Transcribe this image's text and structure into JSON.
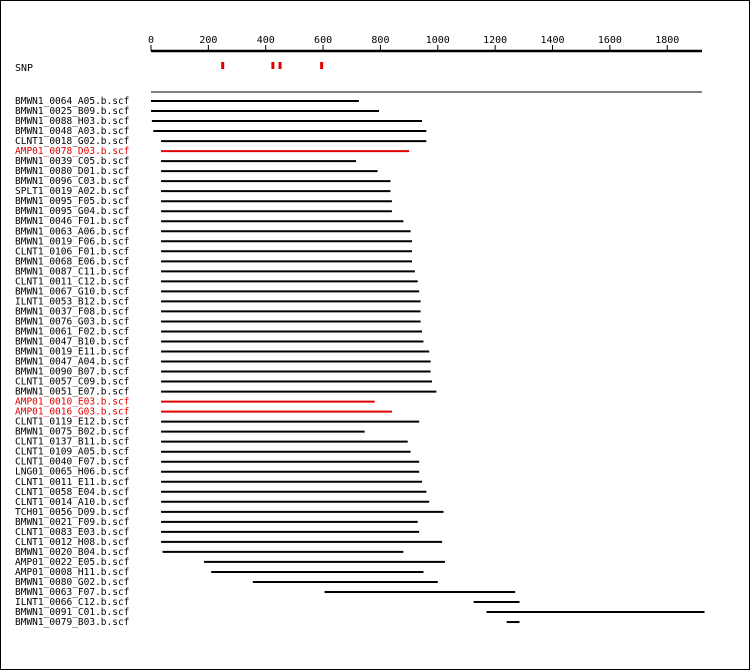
{
  "axis": {
    "min": 0,
    "max": 1900,
    "ticks": [
      0,
      200,
      400,
      600,
      800,
      1000,
      1200,
      1400,
      1600,
      1800
    ]
  },
  "snp": {
    "label": "SNP",
    "color": "#e00000",
    "positions": [
      250,
      425,
      450,
      595
    ]
  },
  "colors": {
    "normal": "#000000",
    "highlight": "#e00000"
  },
  "reads": [
    {
      "name": "BMWN1_0064_A05.b.scf",
      "start": 0,
      "end": 725,
      "highlight": false
    },
    {
      "name": "BMWN1_0025_B09.b.scf",
      "start": 0,
      "end": 795,
      "highlight": false
    },
    {
      "name": "BMWN1_0088_H03.b.scf",
      "start": 3,
      "end": 945,
      "highlight": false
    },
    {
      "name": "BMWN1_0048_A03.b.scf",
      "start": 8,
      "end": 960,
      "highlight": false
    },
    {
      "name": "CLNT1_0018_G02.b.scf",
      "start": 35,
      "end": 960,
      "highlight": false
    },
    {
      "name": "AMP01_0078_D03.b.scf",
      "start": 35,
      "end": 900,
      "highlight": true
    },
    {
      "name": "BMWN1_0039_C05.b.scf",
      "start": 35,
      "end": 715,
      "highlight": false
    },
    {
      "name": "BMWN1_0080_D01.b.scf",
      "start": 35,
      "end": 790,
      "highlight": false
    },
    {
      "name": "BMWN1_0096_C03.b.scf",
      "start": 35,
      "end": 835,
      "highlight": false
    },
    {
      "name": "SPLT1_0019_A02.b.scf",
      "start": 35,
      "end": 835,
      "highlight": false
    },
    {
      "name": "BMWN1_0095_F05.b.scf",
      "start": 35,
      "end": 840,
      "highlight": false
    },
    {
      "name": "BMWN1_0095_G04.b.scf",
      "start": 35,
      "end": 840,
      "highlight": false
    },
    {
      "name": "BMWN1_0046_F01.b.scf",
      "start": 35,
      "end": 880,
      "highlight": false
    },
    {
      "name": "BMWN1_0063_A06.b.scf",
      "start": 35,
      "end": 905,
      "highlight": false
    },
    {
      "name": "BMWN1_0019_F06.b.scf",
      "start": 35,
      "end": 910,
      "highlight": false
    },
    {
      "name": "CLNT1_0106_F01.b.scf",
      "start": 35,
      "end": 910,
      "highlight": false
    },
    {
      "name": "BMWN1_0068_E06.b.scf",
      "start": 35,
      "end": 910,
      "highlight": false
    },
    {
      "name": "BMWN1_0087_C11.b.scf",
      "start": 35,
      "end": 920,
      "highlight": false
    },
    {
      "name": "CLNT1_0011_C12.b.scf",
      "start": 35,
      "end": 930,
      "highlight": false
    },
    {
      "name": "BMWN1_0067_G10.b.scf",
      "start": 35,
      "end": 935,
      "highlight": false
    },
    {
      "name": "ILNT1_0053_B12.b.scf",
      "start": 35,
      "end": 940,
      "highlight": false
    },
    {
      "name": "BMWN1_0037_F08.b.scf",
      "start": 35,
      "end": 940,
      "highlight": false
    },
    {
      "name": "BMWN1_0076_G03.b.scf",
      "start": 35,
      "end": 940,
      "highlight": false
    },
    {
      "name": "BMWN1_0061_F02.b.scf",
      "start": 35,
      "end": 945,
      "highlight": false
    },
    {
      "name": "BMWN1_0047_B10.b.scf",
      "start": 35,
      "end": 950,
      "highlight": false
    },
    {
      "name": "BMWN1_0019_E11.b.scf",
      "start": 35,
      "end": 970,
      "highlight": false
    },
    {
      "name": "BMWN1_0047_A04.b.scf",
      "start": 35,
      "end": 975,
      "highlight": false
    },
    {
      "name": "BMWN1_0090_B07.b.scf",
      "start": 35,
      "end": 975,
      "highlight": false
    },
    {
      "name": "CLNT1_0057_C09.b.scf",
      "start": 35,
      "end": 980,
      "highlight": false
    },
    {
      "name": "BMWN1_0051_E07.b.scf",
      "start": 35,
      "end": 995,
      "highlight": false
    },
    {
      "name": "AMP01_0010_E03.b.scf",
      "start": 35,
      "end": 780,
      "highlight": true
    },
    {
      "name": "AMP01_0016_G03.b.scf",
      "start": 35,
      "end": 840,
      "highlight": true
    },
    {
      "name": "CLNT1_0119_E12.b.scf",
      "start": 35,
      "end": 935,
      "highlight": false
    },
    {
      "name": "BMWN1_0075_B02.b.scf",
      "start": 35,
      "end": 745,
      "highlight": false
    },
    {
      "name": "CLNT1_0137_B11.b.scf",
      "start": 35,
      "end": 895,
      "highlight": false
    },
    {
      "name": "CLNT1_0109_A05.b.scf",
      "start": 35,
      "end": 905,
      "highlight": false
    },
    {
      "name": "CLNT1_0040_F07.b.scf",
      "start": 35,
      "end": 935,
      "highlight": false
    },
    {
      "name": "LNG01_0065_H06.b.scf",
      "start": 35,
      "end": 935,
      "highlight": false
    },
    {
      "name": "CLNT1_0011_E11.b.scf",
      "start": 35,
      "end": 945,
      "highlight": false
    },
    {
      "name": "CLNT1_0058_E04.b.scf",
      "start": 35,
      "end": 960,
      "highlight": false
    },
    {
      "name": "CLNT1_0014_A10.b.scf",
      "start": 35,
      "end": 970,
      "highlight": false
    },
    {
      "name": "TCH01_0056_D09.b.scf",
      "start": 35,
      "end": 1020,
      "highlight": false
    },
    {
      "name": "BMWN1_0021_F09.b.scf",
      "start": 35,
      "end": 930,
      "highlight": false
    },
    {
      "name": "CLNT1_0083_E03.b.scf",
      "start": 35,
      "end": 935,
      "highlight": false
    },
    {
      "name": "CLNT1_0012_H08.b.scf",
      "start": 35,
      "end": 1015,
      "highlight": false
    },
    {
      "name": "BMWN1_0020_B04.b.scf",
      "start": 40,
      "end": 880,
      "highlight": false
    },
    {
      "name": "AMP01_0022_E05.b.scf",
      "start": 185,
      "end": 1025,
      "highlight": false
    },
    {
      "name": "AMP01_0008_H11.b.scf",
      "start": 210,
      "end": 950,
      "highlight": false
    },
    {
      "name": "BMWN1_0080_G02.b.scf",
      "start": 355,
      "end": 1000,
      "highlight": false
    },
    {
      "name": "BMWN1_0063_F07.b.scf",
      "start": 605,
      "end": 1270,
      "highlight": false
    },
    {
      "name": "ILNT1_0066_C12.b.scf",
      "start": 1125,
      "end": 1285,
      "highlight": false
    },
    {
      "name": "BMWN1_0091_C01.b.scf",
      "start": 1170,
      "end": 1930,
      "highlight": false
    },
    {
      "name": "BMWN1_0079_B03.b.scf",
      "start": 1240,
      "end": 1285,
      "highlight": false
    }
  ]
}
